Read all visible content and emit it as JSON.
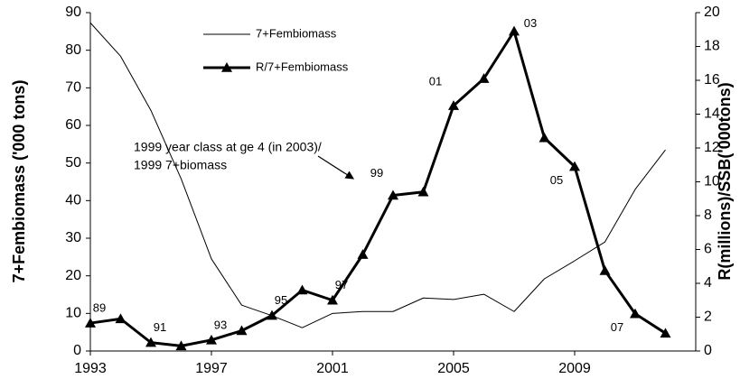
{
  "chart_data": {
    "type": "line",
    "y_label": "7+Fembiomass ('000 tons)",
    "y2_label": "R(millions)/SSB('000tons)",
    "x": [
      1993,
      1994,
      1995,
      1996,
      1997,
      1998,
      1999,
      2000,
      2001,
      2002,
      2003,
      2004,
      2005,
      2006,
      2007,
      2008,
      2009,
      2010,
      2011,
      2012
    ],
    "xlim": [
      1993,
      2013
    ],
    "xticks": [
      1993,
      1997,
      2001,
      2005,
      2009
    ],
    "ylim": [
      0,
      90
    ],
    "yticks": [
      0,
      10,
      20,
      30,
      40,
      50,
      60,
      70,
      80,
      90
    ],
    "y2lim": [
      0,
      20
    ],
    "y2ticks": [
      0,
      2,
      4,
      6,
      8,
      10,
      12,
      14,
      16,
      18,
      20
    ],
    "grid": false,
    "legend": "top",
    "series": [
      {
        "name": "7+Fembiomass",
        "color": "#000000",
        "line_width": 1,
        "marker": "none",
        "values": [
          87.3,
          78.4,
          64,
          45.8,
          24.5,
          12.2,
          9.4,
          6.2,
          10,
          10.5,
          10.5,
          14.1,
          13.7,
          15.1,
          10.5,
          19.2,
          24,
          29,
          43,
          53.5
        ]
      },
      {
        "name": "R/7+Fembiomass",
        "color": "#000000",
        "line_width": 3,
        "marker": "triangle",
        "axis": "y2",
        "values": [
          1.65,
          1.9,
          0.5,
          0.3,
          0.65,
          1.2,
          2.1,
          3.6,
          3.0,
          5.7,
          9.2,
          9.4,
          14.5,
          16.1,
          18.9,
          12.6,
          10.9,
          4.75,
          2.2,
          1.05
        ],
        "point_labels": [
          "89",
          null,
          "91",
          null,
          "93",
          null,
          "95",
          null,
          "97",
          null,
          "99",
          null,
          "01",
          null,
          "03",
          null,
          "05",
          null,
          "07",
          null
        ]
      }
    ],
    "annotation": [
      "1999 year class at ge 4 (in 2003)/",
      "1999 7+biomass"
    ]
  }
}
